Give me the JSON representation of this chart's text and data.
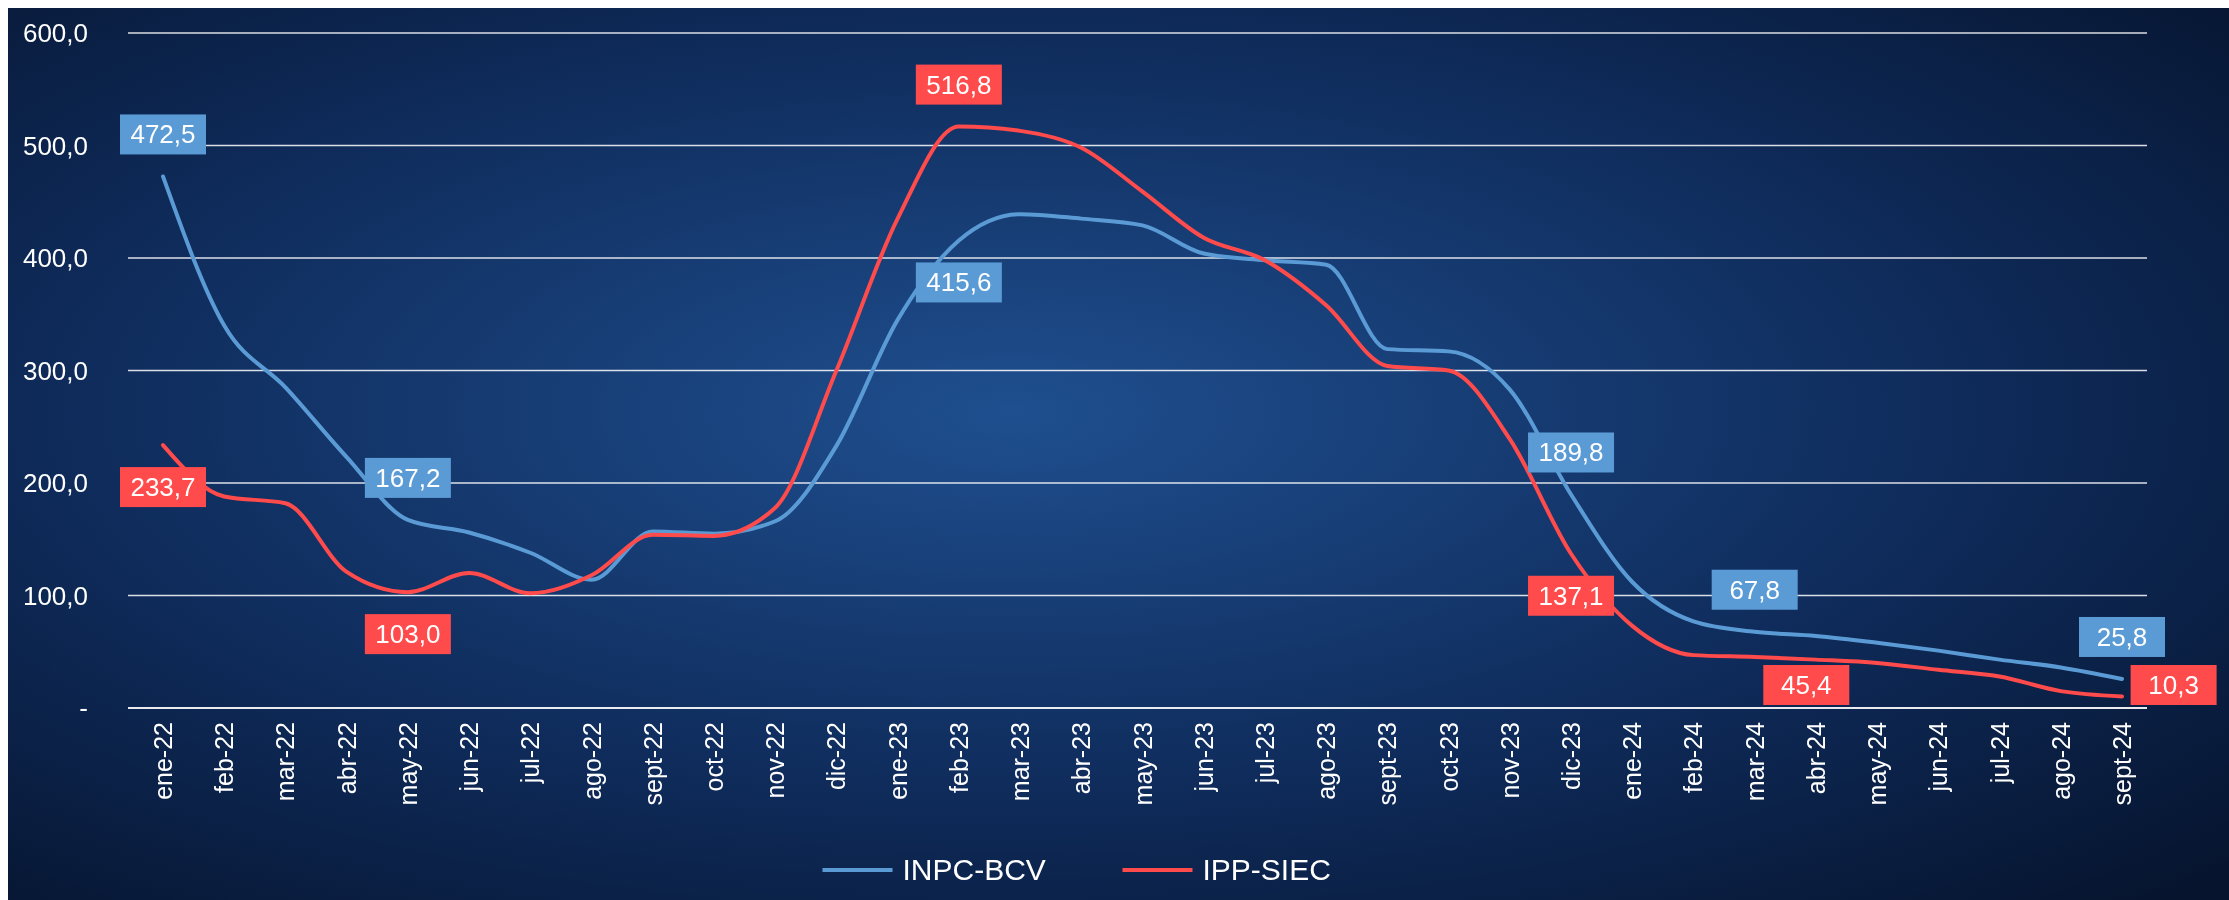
{
  "chart_data": {
    "type": "line",
    "categories": [
      "ene-22",
      "feb-22",
      "mar-22",
      "abr-22",
      "may-22",
      "jun-22",
      "jul-22",
      "ago-22",
      "sept-22",
      "oct-22",
      "nov-22",
      "dic-22",
      "ene-23",
      "feb-23",
      "mar-23",
      "abr-23",
      "may-23",
      "jun-23",
      "jul-23",
      "ago-23",
      "sept-23",
      "oct-23",
      "nov-23",
      "dic-23",
      "ene-24",
      "feb-24",
      "mar-24",
      "abr-24",
      "may-24",
      "jun-24",
      "jul-24",
      "ago-24",
      "sept-24"
    ],
    "series": [
      {
        "name": "INPC-BCV",
        "color": "#5b9bd5",
        "values": [
          472.5,
          340,
          285,
          223,
          167.2,
          156,
          138,
          114,
          157,
          155,
          166,
          233,
          345,
          415.6,
          439,
          435,
          429,
          404,
          398,
          394,
          319,
          317,
          283,
          189.8,
          112,
          77,
          67.8,
          64,
          58,
          51,
          43,
          36,
          25.8
        ],
        "value_labels": [
          "472,5",
          null,
          null,
          null,
          "167,2",
          null,
          null,
          null,
          null,
          null,
          null,
          null,
          null,
          "415,6",
          null,
          null,
          null,
          null,
          null,
          null,
          null,
          null,
          null,
          "189,8",
          null,
          null,
          "67,8",
          null,
          null,
          null,
          null,
          null,
          "25,8"
        ]
      },
      {
        "name": "IPP-SIEC",
        "color": "#ff4b4b",
        "values": [
          233.7,
          188,
          182,
          121,
          103.0,
          120,
          102,
          118,
          154,
          153,
          178,
          300,
          435,
          516.8,
          513,
          498,
          459,
          418,
          398,
          358,
          304,
          300,
          239,
          137.1,
          73,
          47,
          45.4,
          43,
          40,
          34,
          28,
          15,
          10.3
        ],
        "value_labels": [
          "233,7",
          null,
          null,
          null,
          "103,0",
          null,
          null,
          null,
          null,
          null,
          null,
          null,
          null,
          "516,8",
          null,
          null,
          null,
          null,
          null,
          null,
          null,
          null,
          null,
          "137,1",
          null,
          null,
          "45,4",
          null,
          null,
          null,
          null,
          null,
          "10,3"
        ]
      }
    ],
    "ylim": [
      0,
      600
    ],
    "yticks": [
      {
        "value": 0,
        "label": "-"
      },
      {
        "value": 100,
        "label": "100,0"
      },
      {
        "value": 200,
        "label": "200,0"
      },
      {
        "value": 300,
        "label": "300,0"
      },
      {
        "value": 400,
        "label": "400,0"
      },
      {
        "value": 500,
        "label": "500,0"
      },
      {
        "value": 600,
        "label": "600,0"
      }
    ],
    "grid": "y",
    "legend": "bottom",
    "marker": "none",
    "line_style": "solid"
  }
}
